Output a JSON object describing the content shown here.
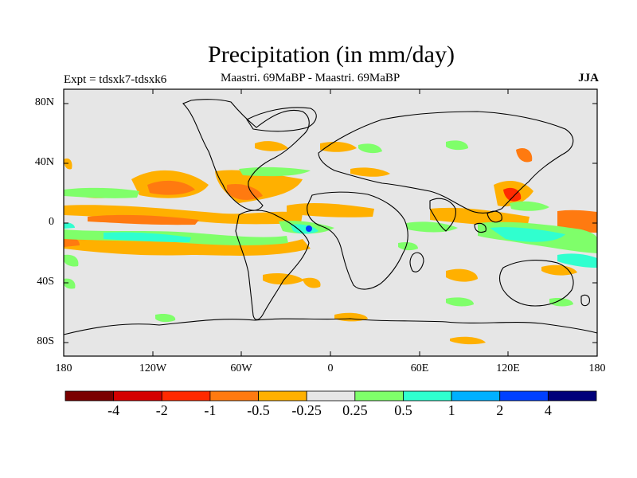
{
  "title": "Precipitation (in mm/day)",
  "subtitle_left": "Expt = tdsxk7-tdsxk6",
  "subtitle_center": "Maastri.  69MaBP - Maastri.  69MaBP",
  "subtitle_right": "JJA",
  "lat_labels": [
    "80N",
    "40N",
    "0",
    "40S",
    "80S"
  ],
  "lon_labels": [
    "180",
    "120W",
    "60W",
    "0",
    "60E",
    "120E",
    "180"
  ],
  "legend": {
    "labels": [
      "-4",
      "-2",
      "-1",
      "-0.5",
      "-0.25",
      "0.25",
      "0.5",
      "1",
      "2",
      "4"
    ],
    "colors": [
      "#7a0000",
      "#d40000",
      "#ff2a00",
      "#ff7a10",
      "#ffb000",
      "#e6e6e6",
      "#7fff6a",
      "#30ffcf",
      "#00b0ff",
      "#0040ff",
      "#00007a"
    ]
  },
  "colors": {
    "land_background": "#e6e6e6",
    "coastline": "#000000"
  }
}
